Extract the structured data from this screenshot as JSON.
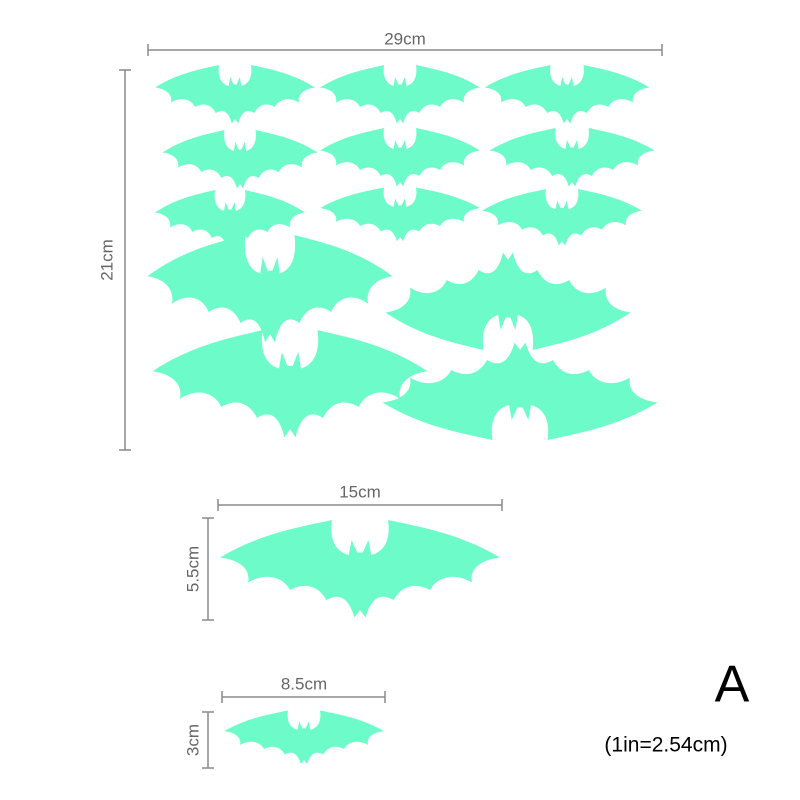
{
  "sheet": {
    "width": "29cm",
    "height": "21cm"
  },
  "medium": {
    "width": "15cm",
    "height": "5.5cm"
  },
  "small": {
    "width": "8.5cm",
    "height": "3cm"
  },
  "variant": "A",
  "conversion": "(1in=2.54cm)"
}
